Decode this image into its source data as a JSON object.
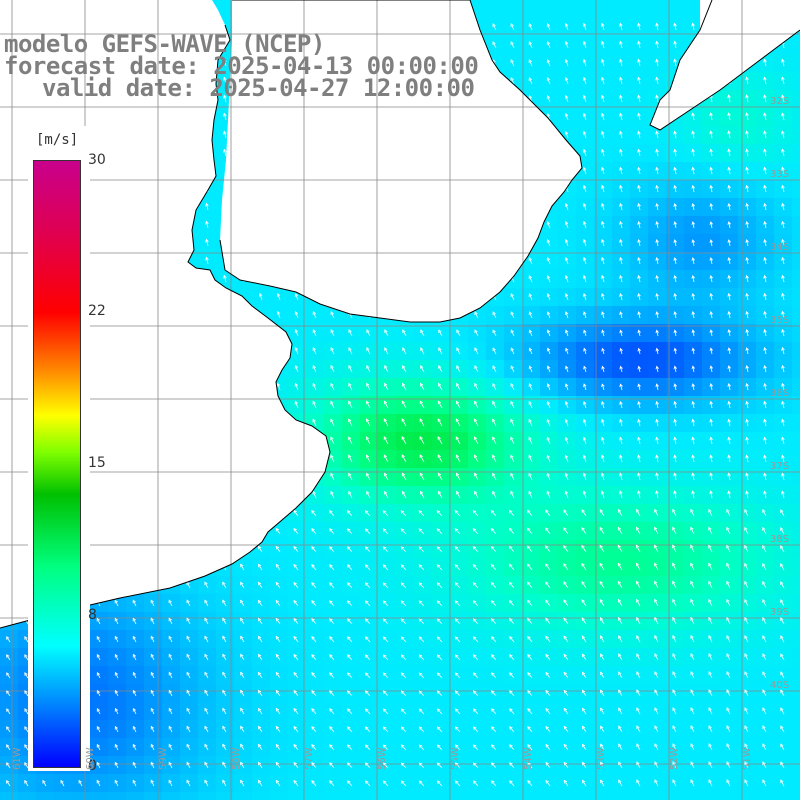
{
  "title": {
    "line1": "modelo GEFS-WAVE (NCEP)",
    "line2": "forecast date: 2025-04-13 00:00:00",
    "line3": "valid date: 2025-04-27 12:00:00"
  },
  "colorbar": {
    "unit": "[m/s]",
    "ticks": [
      "30",
      "22",
      "15",
      "8",
      "0"
    ],
    "stops": [
      "#0000ff",
      "#0080ff",
      "#00ffff",
      "#00ff80",
      "#00c000",
      "#ffff00",
      "#ff8000",
      "#ff0000",
      "#c8008c"
    ]
  },
  "grid": {
    "lat_labels": [
      "32S",
      "33S",
      "34S",
      "35S",
      "36S",
      "37S",
      "38S",
      "39S",
      "40S"
    ],
    "lon_labels": [
      "61W",
      "60W",
      "59W",
      "58W",
      "57W",
      "56W",
      "55W",
      "54W",
      "53W",
      "52W",
      "51W"
    ]
  },
  "colors": {
    "land": "#ffffff",
    "coast": "#000000",
    "gridline": "#888888",
    "arrow": "#ffffff"
  }
}
